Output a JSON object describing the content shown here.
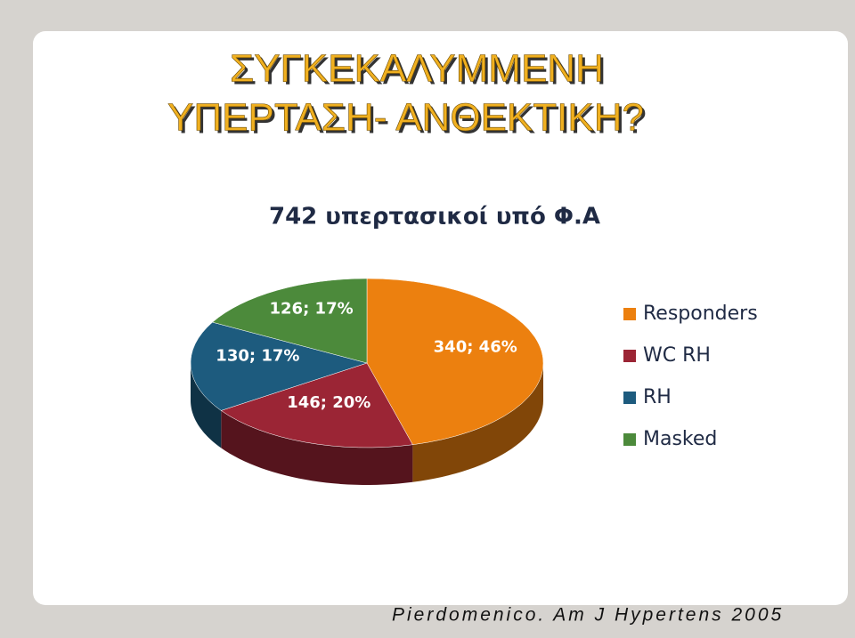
{
  "slide": {
    "title_lines": [
      "ΣΥΓΚΕΚΑΛΥΜΜΕΝΗ",
      "ΥΠΕΡΤΑΣΗ- ΑΝΘΕΚΤΙΚΗ?"
    ],
    "citation": "Pierdomenico. Am J Hypertens 2005"
  },
  "chart_data": {
    "type": "pie",
    "title": "742 υπερτασικοί υπό Φ.Α",
    "categories": [
      "Responders",
      "WC RH",
      "RH",
      "Masked"
    ],
    "values": [
      340,
      146,
      130,
      126
    ],
    "value_labels": [
      "340; 46%",
      "146; 20%",
      "130; 17%",
      "126; 17%"
    ],
    "colors": [
      "#ec800f",
      "#9b2535",
      "#1d5b7e",
      "#4c8a3b"
    ],
    "legend": "right"
  }
}
